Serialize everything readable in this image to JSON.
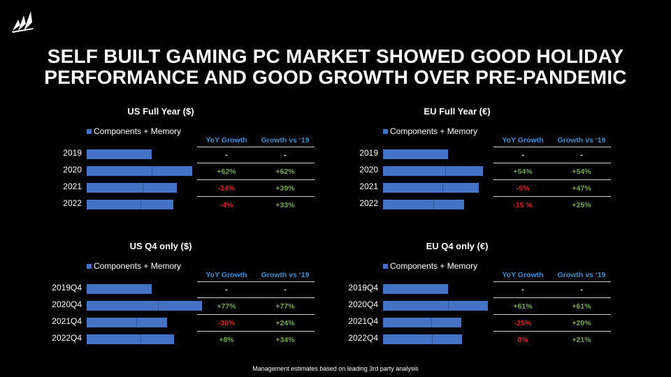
{
  "brand": {
    "logo_icon": "sails-logo-icon"
  },
  "title": {
    "line1": "SELF BUILT GAMING PC MARKET SHOWED GOOD HOLIDAY",
    "line2": "PERFORMANCE AND GOOD GROWTH OVER PRE-PANDEMIC"
  },
  "footnote": "Management estimates based on leading 3rd party analysis",
  "colors": {
    "bar": "#4472c4",
    "positive": "#70ad47",
    "negative": "#e02020",
    "header": "#3a8fd6"
  },
  "chart_data": [
    {
      "type": "bar",
      "orientation": "horizontal",
      "title": "US Full Year ($)",
      "legend": "Components + Memory",
      "categories": [
        "2019",
        "2020",
        "2021",
        "2022"
      ],
      "series": [
        {
          "name": "Components + Memory",
          "values": [
            1.0,
            1.62,
            1.39,
            1.33
          ]
        }
      ],
      "table": {
        "headers": [
          "YoY Growth",
          "Growth vs ‘19"
        ],
        "rows": [
          [
            "-",
            "-"
          ],
          [
            "+62%",
            "+62%"
          ],
          [
            "-14%",
            "+39%"
          ],
          [
            "-4%",
            "+33%"
          ]
        ]
      }
    },
    {
      "type": "bar",
      "orientation": "horizontal",
      "title": "EU Full Year (€)",
      "legend": "Components + Memory",
      "categories": [
        "2019",
        "2020",
        "2021",
        "2022"
      ],
      "series": [
        {
          "name": "Components + Memory",
          "values": [
            1.0,
            1.54,
            1.47,
            1.25
          ]
        }
      ],
      "table": {
        "headers": [
          "YoY Growth",
          "Growth vs ‘19"
        ],
        "rows": [
          [
            "-",
            "-"
          ],
          [
            "+54%",
            "+54%"
          ],
          [
            "-5%",
            "+47%"
          ],
          [
            "-15 %",
            "+25%"
          ]
        ]
      }
    },
    {
      "type": "bar",
      "orientation": "horizontal",
      "title": "US Q4 only ($)",
      "legend": "Components + Memory",
      "categories": [
        "2019Q4",
        "2020Q4",
        "2021Q4",
        "2022Q4"
      ],
      "series": [
        {
          "name": "Components + Memory",
          "values": [
            1.0,
            1.77,
            1.24,
            1.34
          ]
        }
      ],
      "table": {
        "headers": [
          "YoY Growth",
          "Growth vs ‘19"
        ],
        "rows": [
          [
            "-",
            "-"
          ],
          [
            "+77%",
            "+77%"
          ],
          [
            "-30%",
            "+24%"
          ],
          [
            "+8%",
            "+34%"
          ]
        ]
      }
    },
    {
      "type": "bar",
      "orientation": "horizontal",
      "title": "EU Q4 only (€)",
      "legend": "Components + Memory",
      "categories": [
        "2019Q4",
        "2020Q4",
        "2021Q4",
        "2022Q4"
      ],
      "series": [
        {
          "name": "Components + Memory",
          "values": [
            1.0,
            1.61,
            1.2,
            1.21
          ]
        }
      ],
      "table": {
        "headers": [
          "YoY Growth",
          "Growth vs ‘19"
        ],
        "rows": [
          [
            "-",
            "-"
          ],
          [
            "+61%",
            "+61%"
          ],
          [
            "-25%",
            "+20%"
          ],
          [
            "0%",
            "+21%"
          ]
        ]
      }
    }
  ]
}
